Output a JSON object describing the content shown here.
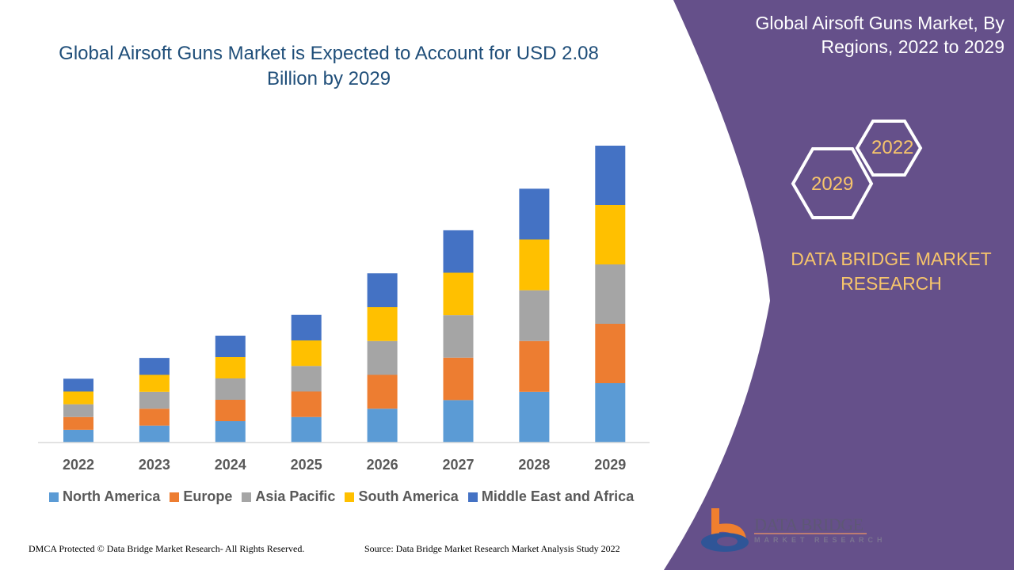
{
  "title": "Global Airsoft Guns Market is Expected to Account for USD 2.08 Billion by 2029",
  "side_panel": {
    "title": "Global Airsoft Guns Market, By Regions, 2022 to 2029",
    "hex_labels": [
      "2022",
      "2029"
    ],
    "brand": "DATA BRIDGE MARKET RESEARCH",
    "logo_text": "DATA BRIDGE",
    "logo_subtext": "MARKET RESEARCH",
    "panel_color": "#65508a"
  },
  "footer": {
    "copyright": "DMCA Protected © Data Bridge Market Research- All Rights Reserved.",
    "source": "Source: Data Bridge Market Research Market Analysis Study 2022"
  },
  "chart_data": {
    "type": "bar",
    "stacked": true,
    "title": "Global Airsoft Guns Market is Expected to Account for USD 2.08 Billion by 2029",
    "categories": [
      "2022",
      "2023",
      "2024",
      "2025",
      "2026",
      "2027",
      "2028",
      "2029"
    ],
    "value_scale": "relative (no value axis shown; 2029 total = 100)",
    "series": [
      {
        "name": "North America",
        "color": "#5b9bd5",
        "values": [
          4.3,
          5.7,
          7.2,
          8.6,
          11.4,
          14.3,
          17.1,
          20
        ]
      },
      {
        "name": "Europe",
        "color": "#ed7d31",
        "values": [
          4.3,
          5.7,
          7.2,
          8.6,
          11.4,
          14.3,
          17.1,
          20
        ]
      },
      {
        "name": "Asia Pacific",
        "color": "#a5a5a5",
        "values": [
          4.3,
          5.7,
          7.2,
          8.6,
          11.4,
          14.3,
          17.1,
          20
        ]
      },
      {
        "name": "South America",
        "color": "#ffc000",
        "values": [
          4.3,
          5.7,
          7.2,
          8.6,
          11.4,
          14.3,
          17.1,
          20
        ]
      },
      {
        "name": "Middle East and Africa",
        "color": "#4472c4",
        "values": [
          4.3,
          5.7,
          7.2,
          8.6,
          11.4,
          14.3,
          17.1,
          20
        ]
      }
    ],
    "ylim": [
      0,
      100
    ],
    "grid": false,
    "legend": "bottom"
  }
}
